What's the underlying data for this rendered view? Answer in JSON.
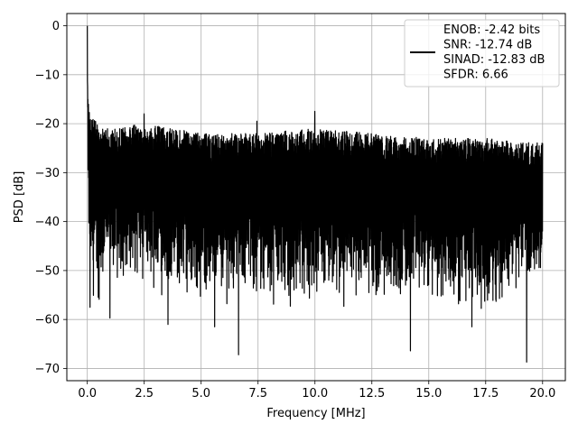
{
  "chart_data": {
    "type": "line",
    "title": "",
    "xlabel": "Frequency [MHz]",
    "ylabel": "PSD [dB]",
    "xlim": [
      -0.9,
      21.0
    ],
    "ylim": [
      -72.5,
      2.5
    ],
    "xticks": [
      0.0,
      2.5,
      5.0,
      7.5,
      10.0,
      12.5,
      15.0,
      17.5,
      20.0
    ],
    "xtick_labels": [
      "0.0",
      "2.5",
      "5.0",
      "7.5",
      "10.0",
      "12.5",
      "15.0",
      "17.5",
      "20.0"
    ],
    "yticks": [
      0,
      -10,
      -20,
      -30,
      -40,
      -50,
      -60,
      -70
    ],
    "ytick_labels": [
      "0",
      "−10",
      "−20",
      "−30",
      "−40",
      "−50",
      "−60",
      "−70"
    ],
    "grid": true,
    "legend_position": "top-right",
    "series": [
      {
        "color": "#000000",
        "x": [
          0.0,
          0.01,
          0.03,
          0.06,
          0.1,
          0.25,
          0.5,
          1.0,
          2.5,
          5.0,
          7.5,
          10.0,
          12.5,
          15.0,
          17.5,
          20.0
        ],
        "upper": [
          0.0,
          -8,
          -12,
          -15,
          -18,
          -19,
          -20,
          -21,
          -20,
          -22,
          -22,
          -21,
          -22,
          -23,
          -23,
          -24
        ],
        "lower": [
          -6,
          -20,
          -35,
          -45,
          -50,
          -55,
          -56,
          -50,
          -52,
          -56,
          -55,
          -58,
          -56,
          -56,
          -58,
          -50
        ],
        "spikes": [
          {
            "x": 0.12,
            "y": -57.5
          },
          {
            "x": 1.0,
            "y": -59.7
          },
          {
            "x": 3.55,
            "y": -61.0
          },
          {
            "x": 5.6,
            "y": -61.5
          },
          {
            "x": 6.65,
            "y": -67.2
          },
          {
            "x": 14.2,
            "y": -66.4
          },
          {
            "x": 16.9,
            "y": -61.5
          },
          {
            "x": 19.3,
            "y": -68.7
          },
          {
            "x": 2.5,
            "y": -18.0
          },
          {
            "x": 10.0,
            "y": -17.5
          },
          {
            "x": 7.45,
            "y": -19.5
          },
          {
            "x": 20.0,
            "y": -24.0
          }
        ]
      }
    ],
    "legend": {
      "label_lines": [
        "ENOB: -2.42 bits",
        "SNR: -12.74 dB",
        "SINAD: -12.83 dB",
        "SFDR: 6.66"
      ]
    }
  }
}
